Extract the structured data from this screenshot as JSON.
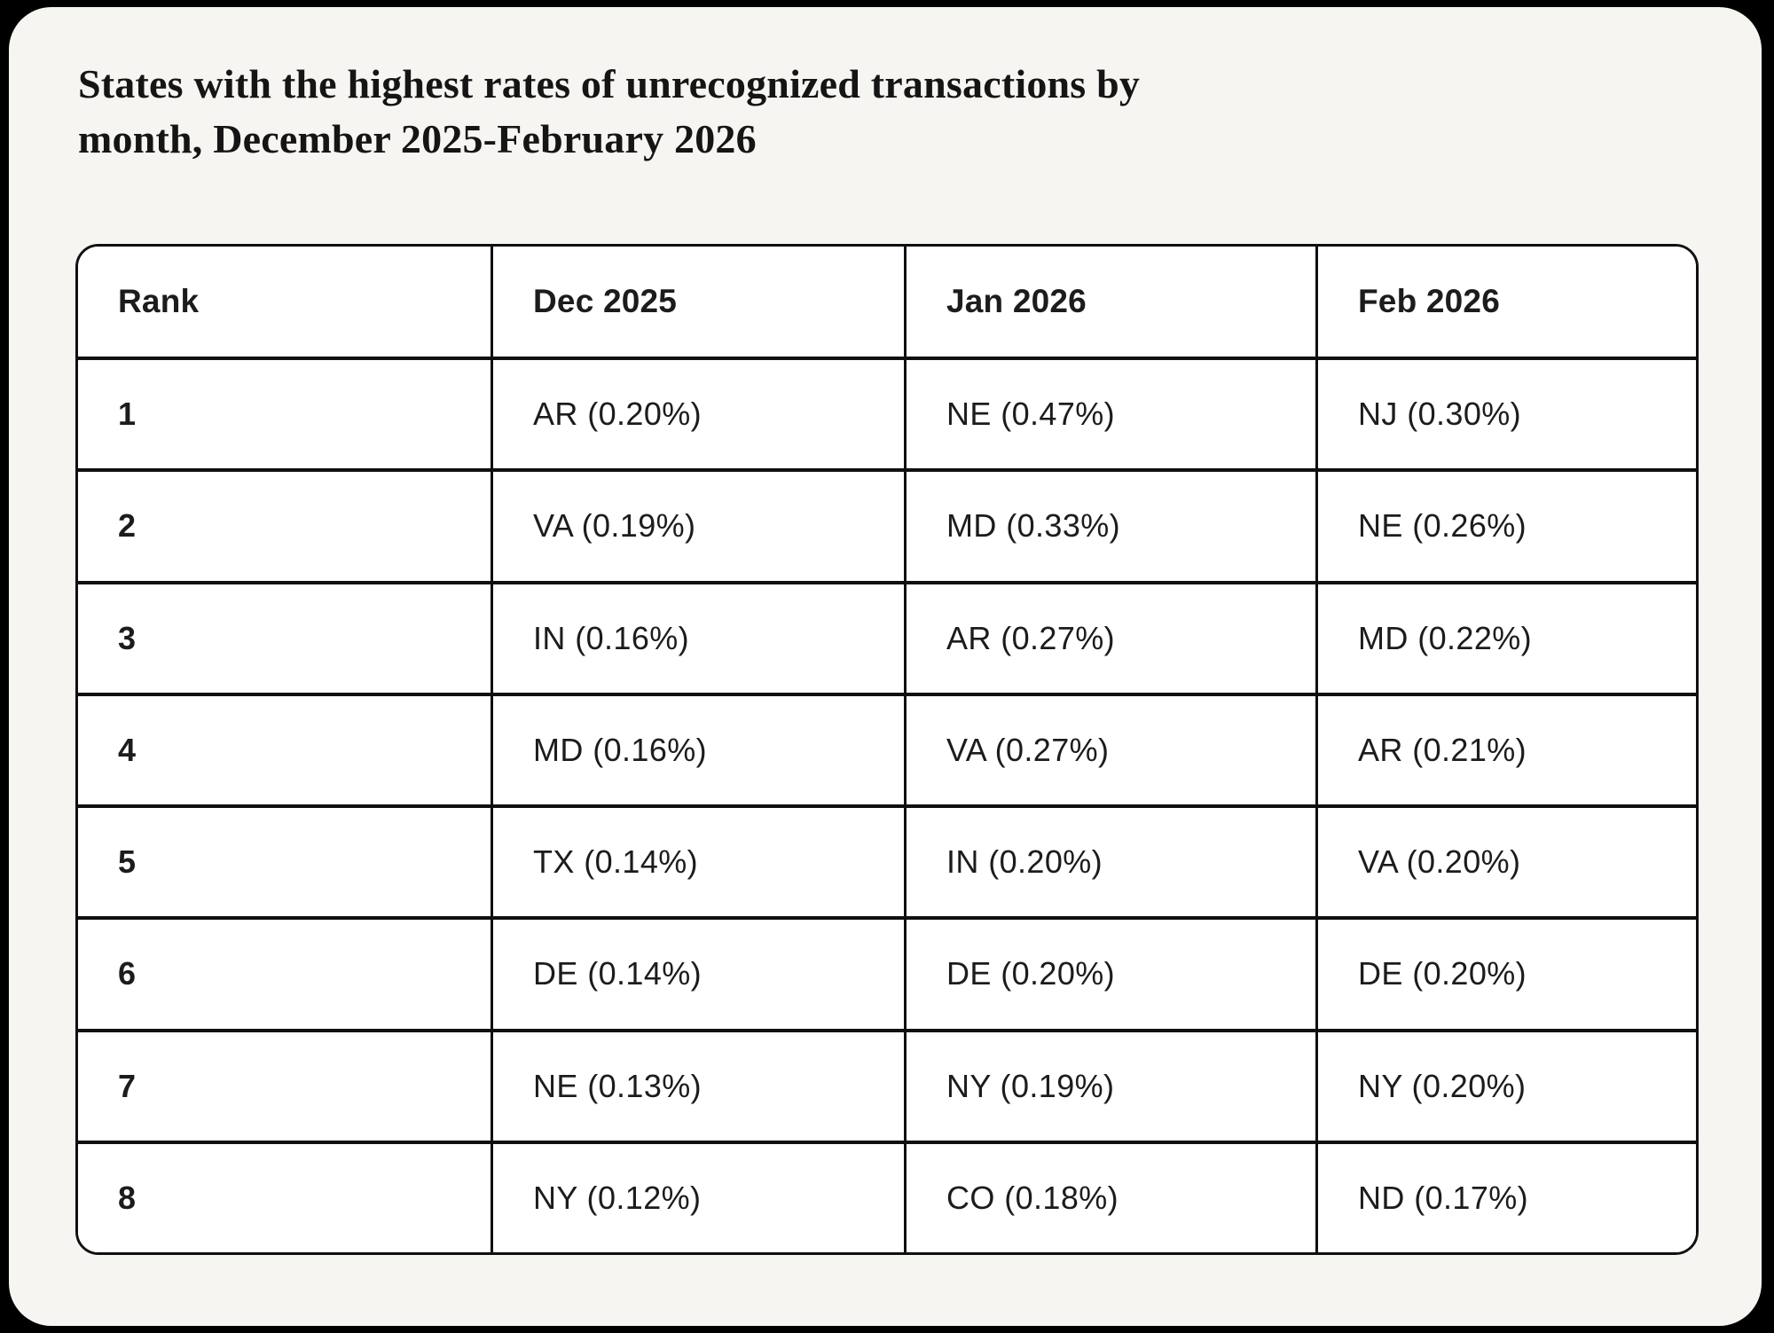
{
  "page": {
    "frame_color": "#000000",
    "card_background": "#f7f5f1",
    "cell_background": "#ffffff",
    "border_color": "#101010",
    "text_color": "#1c1c1c"
  },
  "title": "States with the highest rates of unrecognized transactions by\nmonth, December 2025-February 2026",
  "table": {
    "headers": [
      "Rank",
      "Dec 2025",
      "Jan 2026",
      "Feb 2026"
    ],
    "rows": [
      {
        "cells": [
          "1",
          "AR (0.20%)",
          "NE (0.47%)",
          "NJ (0.30%)"
        ]
      },
      {
        "cells": [
          "2",
          "VA (0.19%)",
          "MD (0.33%)",
          "NE (0.26%)"
        ]
      },
      {
        "cells": [
          "3",
          "IN (0.16%)",
          "AR (0.27%)",
          "MD (0.22%)"
        ]
      },
      {
        "cells": [
          "4",
          "MD (0.16%)",
          "VA (0.27%)",
          "AR (0.21%)"
        ]
      },
      {
        "cells": [
          "5",
          "TX (0.14%)",
          "IN (0.20%)",
          "VA (0.20%)"
        ]
      },
      {
        "cells": [
          "6",
          "DE (0.14%)",
          "DE (0.20%)",
          "DE (0.20%)"
        ]
      },
      {
        "cells": [
          "7",
          "NE (0.13%)",
          "NY (0.19%)",
          "NY (0.20%)"
        ]
      },
      {
        "cells": [
          "8",
          "NY (0.12%)",
          "CO (0.18%)",
          "ND (0.17%)"
        ]
      }
    ]
  },
  "chart_data": {
    "type": "table",
    "title": "States with the highest rates of unrecognized transactions by month, December 2025-February 2026",
    "columns": [
      "Rank",
      "Dec 2025",
      "Jan 2026",
      "Feb 2026"
    ],
    "rows": [
      [
        "1",
        "AR (0.20%)",
        "NE (0.47%)",
        "NJ (0.30%)"
      ],
      [
        "2",
        "VA (0.19%)",
        "MD (0.33%)",
        "NE (0.26%)"
      ],
      [
        "3",
        "IN (0.16%)",
        "AR (0.27%)",
        "MD (0.22%)"
      ],
      [
        "4",
        "MD (0.16%)",
        "VA (0.27%)",
        "AR (0.21%)"
      ],
      [
        "5",
        "TX (0.14%)",
        "IN (0.20%)",
        "VA (0.20%)"
      ],
      [
        "6",
        "DE (0.14%)",
        "DE (0.20%)",
        "DE (0.20%)"
      ],
      [
        "7",
        "NE (0.13%)",
        "NY (0.19%)",
        "NY (0.20%)"
      ],
      [
        "8",
        "NY (0.12%)",
        "CO (0.18%)",
        "ND (0.17%)"
      ]
    ],
    "series": [
      {
        "name": "Dec 2025",
        "states": [
          "AR",
          "VA",
          "IN",
          "MD",
          "TX",
          "DE",
          "NE",
          "NY"
        ],
        "values_pct": [
          0.2,
          0.19,
          0.16,
          0.16,
          0.14,
          0.14,
          0.13,
          0.12
        ]
      },
      {
        "name": "Jan 2026",
        "states": [
          "NE",
          "MD",
          "AR",
          "VA",
          "IN",
          "DE",
          "NY",
          "CO"
        ],
        "values_pct": [
          0.47,
          0.33,
          0.27,
          0.27,
          0.2,
          0.2,
          0.19,
          0.18
        ]
      },
      {
        "name": "Feb 2026",
        "states": [
          "NJ",
          "NE",
          "MD",
          "AR",
          "VA",
          "DE",
          "NY",
          "ND"
        ],
        "values_pct": [
          0.3,
          0.26,
          0.22,
          0.21,
          0.2,
          0.2,
          0.2,
          0.17
        ]
      }
    ]
  }
}
